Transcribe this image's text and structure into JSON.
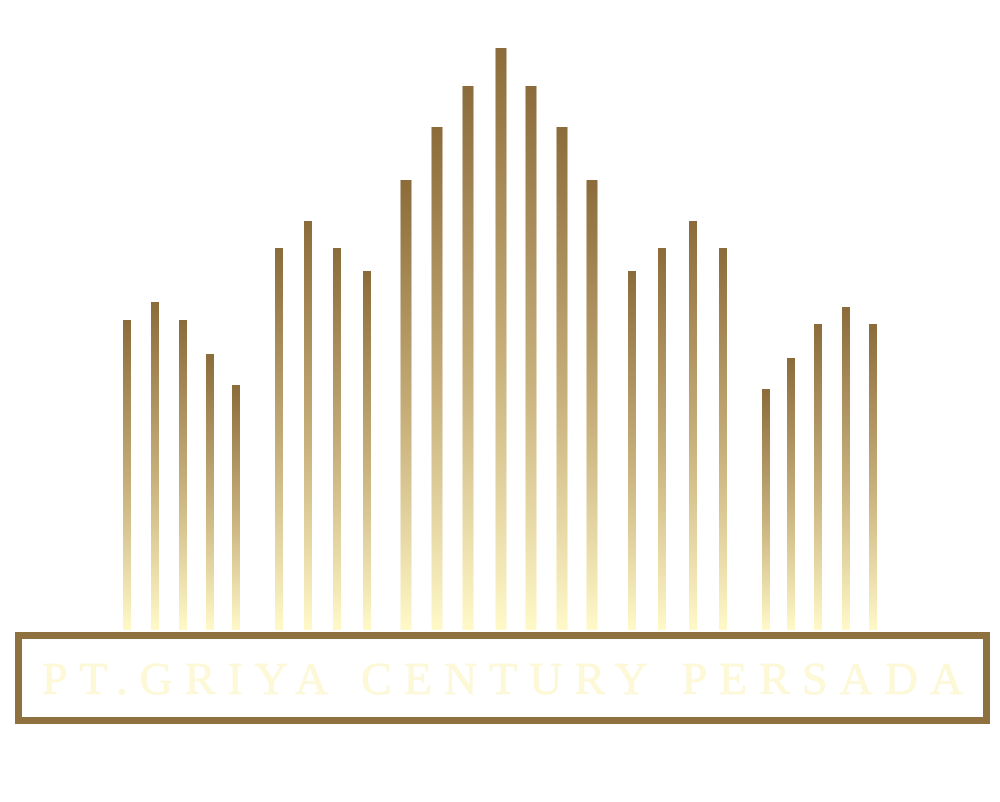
{
  "logo": {
    "name": "building-bars-logo-icon",
    "bar_gradient_top": "#8b6b3a",
    "bar_gradient_mid": "#c9b27d",
    "bar_gradient_bottom": "#fff9c8",
    "frame_color": "#8f7140",
    "text_color": "#fdf8d6"
  },
  "company": {
    "name": "PT.GRIYA CENTURY PERSADA"
  }
}
